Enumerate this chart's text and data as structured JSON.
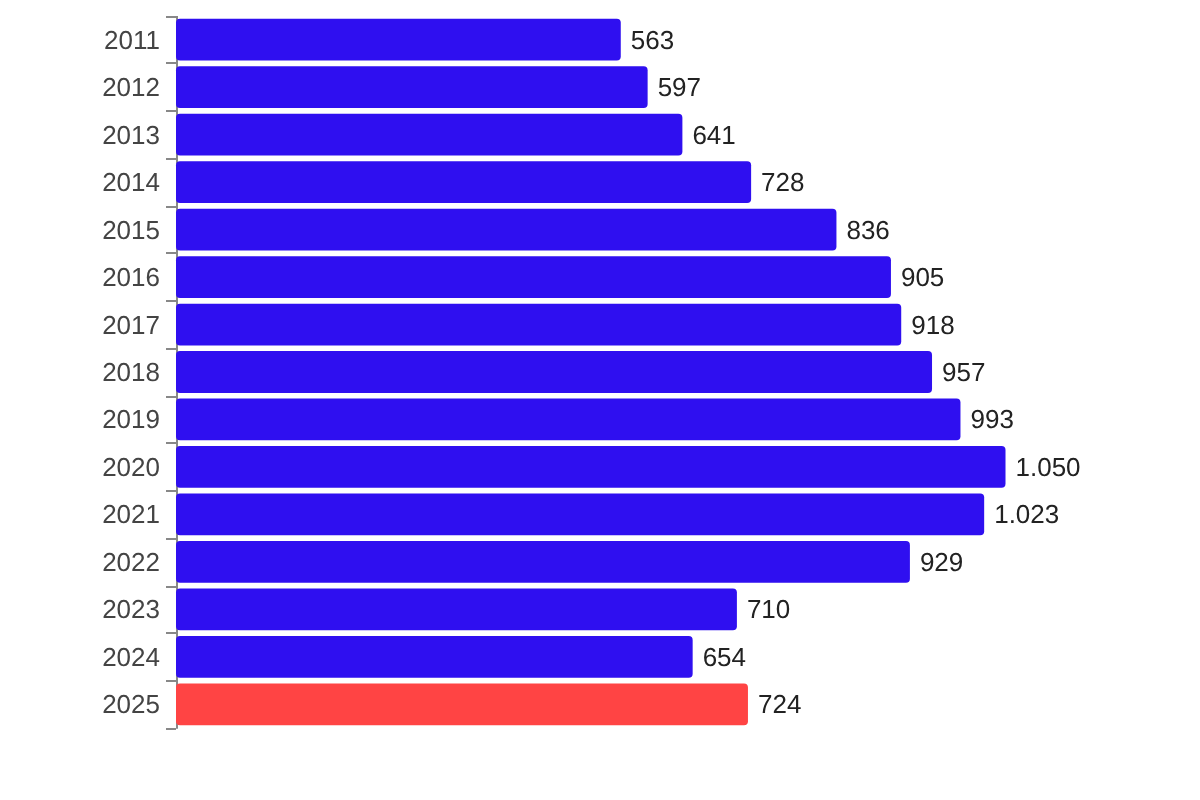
{
  "chart_data": {
    "type": "bar",
    "orientation": "horizontal",
    "categories": [
      "2011",
      "2012",
      "2013",
      "2014",
      "2015",
      "2016",
      "2017",
      "2018",
      "2019",
      "2020",
      "2021",
      "2022",
      "2023",
      "2024",
      "2025"
    ],
    "values": [
      563,
      597,
      641,
      728,
      836,
      905,
      918,
      957,
      993,
      1050,
      1023,
      929,
      710,
      654,
      724
    ],
    "colors": [
      "#2f0ff0",
      "#2f0ff0",
      "#2f0ff0",
      "#2f0ff0",
      "#2f0ff0",
      "#2f0ff0",
      "#2f0ff0",
      "#2f0ff0",
      "#2f0ff0",
      "#2f0ff0",
      "#2f0ff0",
      "#2f0ff0",
      "#2f0ff0",
      "#2f0ff0",
      "#ff4444"
    ],
    "value_labels": [
      "563",
      "597",
      "641",
      "728",
      "836",
      "905",
      "918",
      "957",
      "993",
      "1.050",
      "1.023",
      "929",
      "710",
      "654",
      "724"
    ]
  }
}
